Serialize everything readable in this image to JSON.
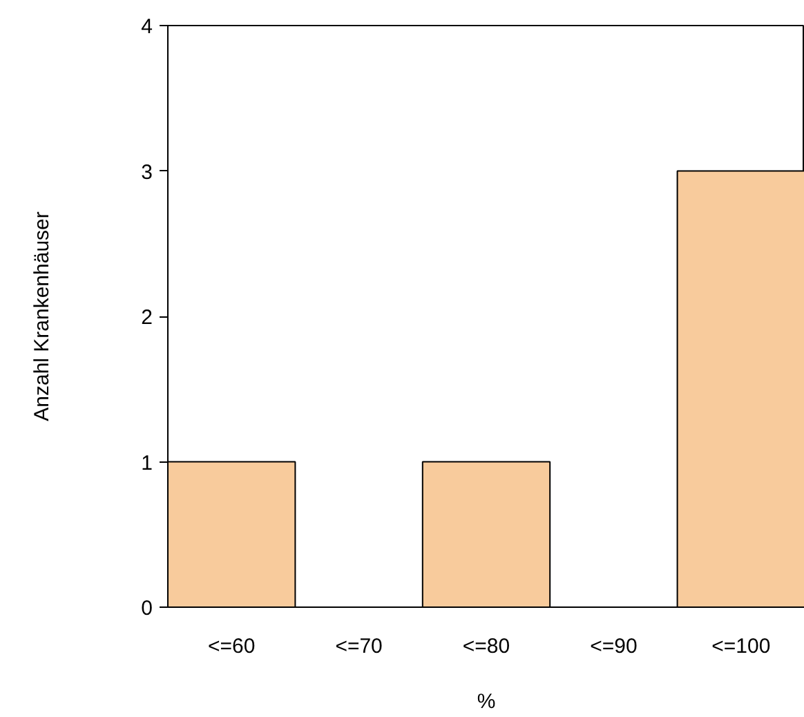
{
  "chart_data": {
    "type": "bar",
    "xlabel": "%",
    "ylabel": "Anzahl Krankenhäuser",
    "categories": [
      "<=60",
      "<=70",
      "<=80",
      "<=90",
      "<=100"
    ],
    "values": [
      1,
      0,
      1,
      0,
      3
    ],
    "color": "#f8cb9c",
    "ylim": [
      0,
      4
    ],
    "yticks": [
      0,
      1,
      2,
      3,
      4
    ],
    "grid": false
  }
}
